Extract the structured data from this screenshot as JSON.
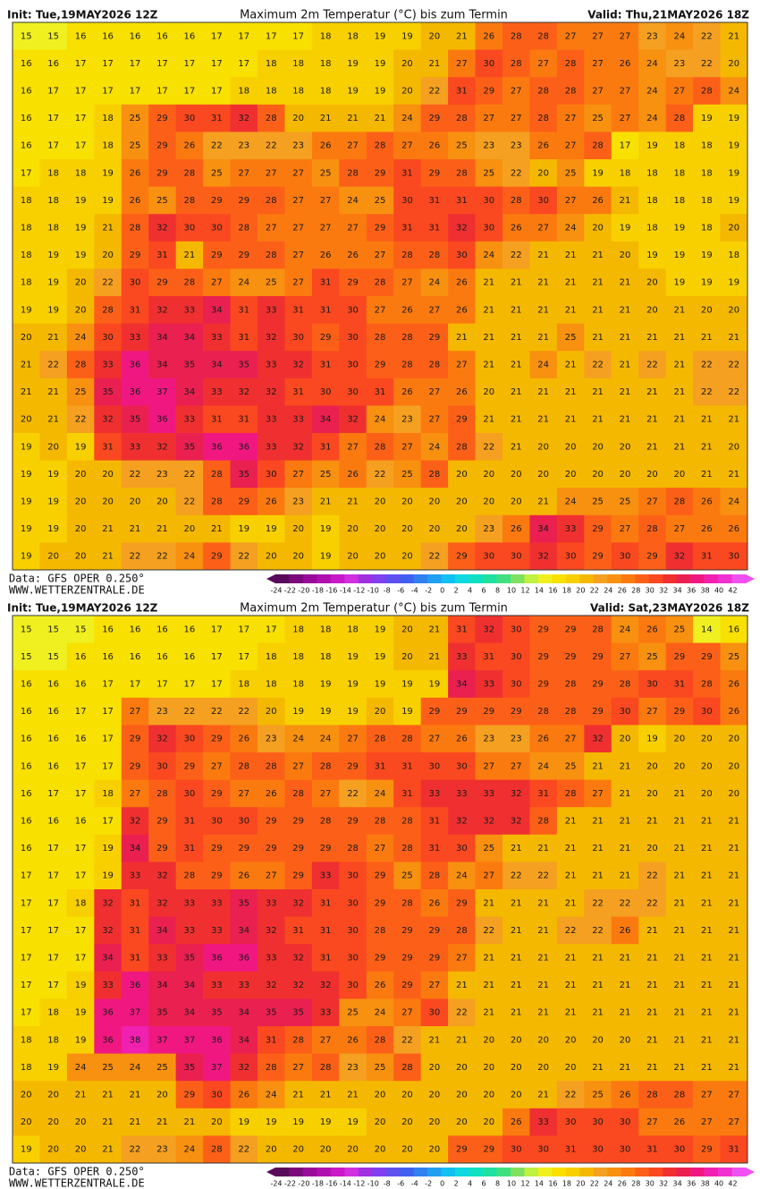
{
  "colorbar": {
    "ticks": [
      -24,
      -22,
      -20,
      -18,
      -16,
      -14,
      -12,
      -10,
      -8,
      -6,
      -4,
      -2,
      0,
      2,
      4,
      6,
      8,
      10,
      12,
      14,
      16,
      18,
      20,
      22,
      24,
      26,
      28,
      30,
      32,
      34,
      36,
      38,
      40,
      42
    ],
    "colors": [
      "#5a0a5a",
      "#7a0a7a",
      "#9a0a9a",
      "#b010b0",
      "#c818c8",
      "#d030e0",
      "#a030e0",
      "#8040f0",
      "#6050f0",
      "#4060f0",
      "#3080f0",
      "#20a0f0",
      "#10c0f0",
      "#10d8e0",
      "#10e0c0",
      "#20e0a0",
      "#40e080",
      "#80e060",
      "#c0f040",
      "#f0f020",
      "#f8e000",
      "#f8d000",
      "#f5b800",
      "#f5a020",
      "#f89010",
      "#fb7a10",
      "#fc6018",
      "#fa4820",
      "#f03030",
      "#ea2050",
      "#f01880",
      "#f020b0",
      "#f030d0",
      "#f050f0"
    ]
  },
  "panels": [
    {
      "header": {
        "init": "Init: Tue,19MAY2026 12Z",
        "title": "Maximum 2m Temperatur (°C) bis zum Termin",
        "valid": "Valid: Thu,21MAY2026 18Z"
      },
      "grid": [
        [
          15,
          15,
          16,
          16,
          16,
          16,
          16,
          17,
          17,
          17,
          17,
          18,
          18,
          19,
          19,
          20,
          21,
          26,
          28,
          28,
          27,
          27,
          27,
          23,
          24,
          22,
          21
        ],
        [
          16,
          16,
          17,
          17,
          17,
          17,
          17,
          17,
          17,
          18,
          18,
          18,
          19,
          19,
          20,
          21,
          27,
          30,
          28,
          27,
          28,
          27,
          26,
          24,
          23,
          22,
          20
        ],
        [
          16,
          17,
          17,
          17,
          17,
          17,
          17,
          17,
          18,
          18,
          18,
          18,
          19,
          19,
          20,
          22,
          31,
          29,
          27,
          28,
          28,
          27,
          27,
          24,
          27,
          28,
          24
        ],
        [
          16,
          17,
          17,
          18,
          25,
          29,
          30,
          31,
          32,
          28,
          20,
          21,
          21,
          21,
          24,
          29,
          28,
          27,
          27,
          28,
          27,
          25,
          27,
          24,
          28,
          19,
          19
        ],
        [
          16,
          17,
          17,
          18,
          25,
          29,
          26,
          22,
          23,
          22,
          23,
          26,
          27,
          28,
          27,
          26,
          25,
          23,
          23,
          26,
          27,
          28,
          17,
          19,
          18,
          18,
          19
        ],
        [
          17,
          18,
          18,
          19,
          26,
          29,
          28,
          25,
          27,
          27,
          27,
          25,
          28,
          29,
          31,
          29,
          28,
          25,
          22,
          20,
          25,
          19,
          18,
          18,
          18,
          18,
          19
        ],
        [
          18,
          18,
          19,
          19,
          26,
          25,
          28,
          29,
          29,
          28,
          27,
          27,
          24,
          25,
          30,
          31,
          31,
          30,
          28,
          30,
          27,
          26,
          21,
          18,
          18,
          18,
          19
        ],
        [
          18,
          18,
          19,
          21,
          28,
          32,
          30,
          30,
          28,
          27,
          27,
          27,
          27,
          29,
          31,
          31,
          32,
          30,
          26,
          27,
          24,
          20,
          19,
          18,
          19,
          18,
          20
        ],
        [
          18,
          19,
          19,
          20,
          29,
          31,
          21,
          29,
          29,
          28,
          27,
          26,
          26,
          27,
          28,
          28,
          30,
          24,
          22,
          21,
          21,
          21,
          20,
          19,
          19,
          19,
          18
        ],
        [
          18,
          19,
          20,
          22,
          30,
          29,
          28,
          27,
          24,
          25,
          27,
          31,
          29,
          28,
          27,
          24,
          26,
          21,
          21,
          21,
          21,
          21,
          21,
          20,
          19,
          19,
          19
        ],
        [
          19,
          19,
          20,
          28,
          31,
          32,
          33,
          34,
          31,
          33,
          31,
          31,
          30,
          27,
          26,
          27,
          26,
          21,
          21,
          21,
          21,
          21,
          21,
          20,
          21,
          20,
          20
        ],
        [
          20,
          21,
          24,
          30,
          33,
          34,
          34,
          33,
          31,
          32,
          30,
          29,
          30,
          28,
          28,
          29,
          21,
          21,
          21,
          21,
          25,
          21,
          21,
          21,
          21,
          21,
          21
        ],
        [
          21,
          22,
          28,
          33,
          36,
          34,
          35,
          34,
          35,
          33,
          32,
          31,
          30,
          29,
          28,
          28,
          27,
          21,
          21,
          24,
          21,
          22,
          21,
          22,
          21,
          22,
          22
        ],
        [
          21,
          21,
          25,
          35,
          36,
          37,
          34,
          33,
          32,
          32,
          31,
          30,
          30,
          31,
          26,
          27,
          26,
          20,
          21,
          21,
          21,
          21,
          21,
          21,
          21,
          22,
          22
        ],
        [
          20,
          21,
          22,
          32,
          35,
          36,
          33,
          31,
          31,
          33,
          33,
          34,
          32,
          24,
          23,
          27,
          29,
          21,
          21,
          21,
          21,
          21,
          21,
          21,
          21,
          21,
          21
        ],
        [
          19,
          20,
          19,
          31,
          33,
          32,
          35,
          36,
          36,
          33,
          32,
          31,
          27,
          28,
          27,
          24,
          28,
          22,
          21,
          20,
          20,
          20,
          20,
          21,
          21,
          21,
          20
        ],
        [
          19,
          19,
          20,
          20,
          22,
          23,
          22,
          28,
          35,
          30,
          27,
          25,
          26,
          22,
          25,
          28,
          20,
          20,
          20,
          20,
          20,
          20,
          20,
          20,
          20,
          21,
          21
        ],
        [
          19,
          19,
          20,
          20,
          20,
          20,
          22,
          28,
          29,
          26,
          23,
          21,
          21,
          20,
          20,
          20,
          20,
          20,
          20,
          21,
          24,
          25,
          25,
          27,
          28,
          26,
          24
        ],
        [
          19,
          19,
          20,
          21,
          21,
          21,
          20,
          21,
          19,
          19,
          20,
          19,
          20,
          20,
          20,
          20,
          20,
          23,
          26,
          34,
          33,
          29,
          27,
          28,
          27,
          26,
          26
        ],
        [
          19,
          20,
          20,
          21,
          22,
          22,
          24,
          29,
          22,
          20,
          20,
          19,
          20,
          20,
          20,
          22,
          29,
          30,
          30,
          32,
          30,
          29,
          30,
          29,
          32,
          31,
          30
        ]
      ],
      "footer": {
        "source": "Data: GFS OPER 0.250°",
        "site": "WWW.WETTERZENTRALE.DE"
      }
    },
    {
      "header": {
        "init": "Init: Tue,19MAY2026 12Z",
        "title": "Maximum 2m Temperatur (°C) bis zum Termin",
        "valid": "Valid: Sat,23MAY2026 18Z"
      },
      "grid": [
        [
          15,
          15,
          15,
          16,
          16,
          16,
          16,
          17,
          17,
          17,
          18,
          18,
          18,
          19,
          20,
          21,
          31,
          32,
          30,
          29,
          29,
          28,
          24,
          26,
          25,
          14,
          16
        ],
        [
          15,
          15,
          16,
          16,
          16,
          16,
          16,
          17,
          17,
          18,
          18,
          18,
          19,
          19,
          20,
          21,
          33,
          31,
          30,
          29,
          29,
          29,
          27,
          25,
          29,
          29,
          25
        ],
        [
          16,
          16,
          16,
          17,
          17,
          17,
          17,
          17,
          18,
          18,
          18,
          19,
          19,
          19,
          19,
          19,
          34,
          33,
          30,
          29,
          28,
          29,
          28,
          30,
          31,
          28,
          26
        ],
        [
          16,
          16,
          17,
          17,
          27,
          23,
          22,
          22,
          22,
          20,
          19,
          19,
          19,
          20,
          19,
          29,
          29,
          29,
          29,
          28,
          28,
          29,
          30,
          27,
          29,
          30,
          26
        ],
        [
          16,
          16,
          16,
          17,
          29,
          32,
          30,
          29,
          26,
          23,
          24,
          24,
          27,
          28,
          28,
          27,
          26,
          23,
          23,
          26,
          27,
          32,
          20,
          19,
          20,
          20,
          20
        ],
        [
          16,
          16,
          17,
          17,
          29,
          30,
          29,
          27,
          28,
          28,
          27,
          28,
          29,
          31,
          31,
          30,
          30,
          27,
          27,
          24,
          25,
          21,
          21,
          20,
          20,
          20,
          20
        ],
        [
          16,
          17,
          17,
          18,
          27,
          28,
          30,
          29,
          27,
          26,
          28,
          27,
          22,
          24,
          31,
          33,
          33,
          33,
          32,
          31,
          28,
          27,
          21,
          20,
          21,
          20,
          20
        ],
        [
          16,
          16,
          16,
          17,
          32,
          29,
          31,
          30,
          30,
          29,
          29,
          28,
          29,
          28,
          28,
          31,
          32,
          32,
          32,
          28,
          21,
          21,
          21,
          21,
          21,
          21,
          21
        ],
        [
          16,
          17,
          17,
          19,
          34,
          29,
          31,
          29,
          29,
          29,
          29,
          29,
          28,
          27,
          28,
          31,
          30,
          25,
          21,
          21,
          21,
          21,
          21,
          20,
          21,
          21,
          21
        ],
        [
          17,
          17,
          17,
          19,
          33,
          32,
          28,
          29,
          26,
          27,
          29,
          33,
          30,
          29,
          25,
          28,
          24,
          27,
          22,
          22,
          21,
          21,
          21,
          22,
          21,
          21,
          21
        ],
        [
          17,
          17,
          18,
          32,
          31,
          32,
          33,
          33,
          35,
          33,
          32,
          31,
          30,
          29,
          28,
          26,
          29,
          21,
          21,
          21,
          21,
          22,
          22,
          22,
          21,
          21,
          21
        ],
        [
          17,
          17,
          17,
          32,
          31,
          34,
          33,
          33,
          34,
          32,
          31,
          31,
          30,
          28,
          29,
          29,
          28,
          22,
          21,
          21,
          22,
          22,
          26,
          21,
          21,
          21,
          21
        ],
        [
          17,
          17,
          17,
          34,
          31,
          33,
          35,
          36,
          36,
          33,
          32,
          31,
          30,
          29,
          29,
          29,
          27,
          21,
          21,
          21,
          21,
          21,
          21,
          21,
          21,
          21,
          21
        ],
        [
          17,
          17,
          19,
          33,
          36,
          34,
          34,
          33,
          33,
          32,
          32,
          32,
          30,
          26,
          29,
          27,
          21,
          21,
          21,
          21,
          21,
          21,
          21,
          21,
          21,
          21,
          21
        ],
        [
          17,
          18,
          19,
          36,
          37,
          35,
          34,
          35,
          34,
          35,
          35,
          33,
          25,
          24,
          27,
          30,
          22,
          21,
          21,
          21,
          21,
          21,
          21,
          21,
          21,
          21,
          21
        ],
        [
          18,
          18,
          19,
          36,
          38,
          37,
          37,
          36,
          34,
          31,
          28,
          27,
          26,
          28,
          22,
          21,
          21,
          20,
          20,
          20,
          20,
          20,
          20,
          21,
          21,
          21,
          21
        ],
        [
          18,
          19,
          24,
          25,
          24,
          25,
          35,
          37,
          32,
          28,
          27,
          28,
          23,
          25,
          28,
          20,
          20,
          20,
          20,
          20,
          20,
          21,
          21,
          21,
          21,
          21,
          21
        ],
        [
          20,
          20,
          21,
          21,
          21,
          20,
          29,
          30,
          26,
          24,
          21,
          21,
          21,
          20,
          20,
          20,
          20,
          20,
          20,
          21,
          22,
          25,
          26,
          28,
          28,
          27,
          27
        ],
        [
          20,
          20,
          20,
          21,
          21,
          21,
          21,
          20,
          19,
          19,
          19,
          19,
          19,
          20,
          20,
          20,
          20,
          20,
          26,
          33,
          30,
          30,
          30,
          27,
          26,
          27,
          27
        ],
        [
          19,
          20,
          20,
          21,
          22,
          23,
          24,
          28,
          22,
          20,
          20,
          20,
          20,
          20,
          20,
          20,
          29,
          29,
          30,
          30,
          31,
          30,
          30,
          31,
          30,
          29,
          31
        ]
      ],
      "footer": {
        "source": "Data: GFS OPER 0.250°",
        "site": "WWW.WETTERZENTRALE.DE"
      }
    }
  ]
}
